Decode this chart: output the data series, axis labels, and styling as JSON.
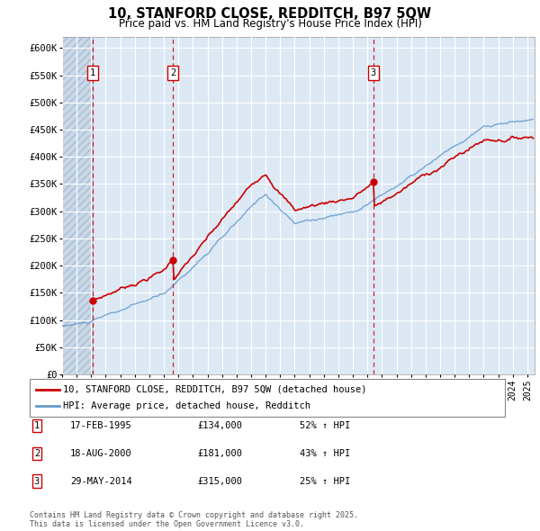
{
  "title": "10, STANFORD CLOSE, REDDITCH, B97 5QW",
  "subtitle": "Price paid vs. HM Land Registry's House Price Index (HPI)",
  "ylim": [
    0,
    620000
  ],
  "yticks": [
    0,
    50000,
    100000,
    150000,
    200000,
    250000,
    300000,
    350000,
    400000,
    450000,
    500000,
    550000,
    600000
  ],
  "ytick_labels": [
    "£0",
    "£50K",
    "£100K",
    "£150K",
    "£200K",
    "£250K",
    "£300K",
    "£350K",
    "£400K",
    "£450K",
    "£500K",
    "£550K",
    "£600K"
  ],
  "xlim_start": 1993.0,
  "xlim_end": 2025.5,
  "purchases": [
    {
      "date": 1995.12,
      "price": 134000,
      "label": "1"
    },
    {
      "date": 2000.63,
      "price": 181000,
      "label": "2"
    },
    {
      "date": 2014.41,
      "price": 315000,
      "label": "3"
    }
  ],
  "legend_line1": "10, STANFORD CLOSE, REDDITCH, B97 5QW (detached house)",
  "legend_line2": "HPI: Average price, detached house, Redditch",
  "table_rows": [
    {
      "num": "1",
      "date": "17-FEB-1995",
      "price": "£134,000",
      "hpi": "52% ↑ HPI"
    },
    {
      "num": "2",
      "date": "18-AUG-2000",
      "price": "£181,000",
      "hpi": "43% ↑ HPI"
    },
    {
      "num": "3",
      "date": "29-MAY-2014",
      "price": "£315,000",
      "hpi": "25% ↑ HPI"
    }
  ],
  "footnote": "Contains HM Land Registry data © Crown copyright and database right 2025.\nThis data is licensed under the Open Government Licence v3.0.",
  "bg_color": "#dce9f5",
  "red_line_color": "#cc0000",
  "blue_line_color": "#6699cc"
}
